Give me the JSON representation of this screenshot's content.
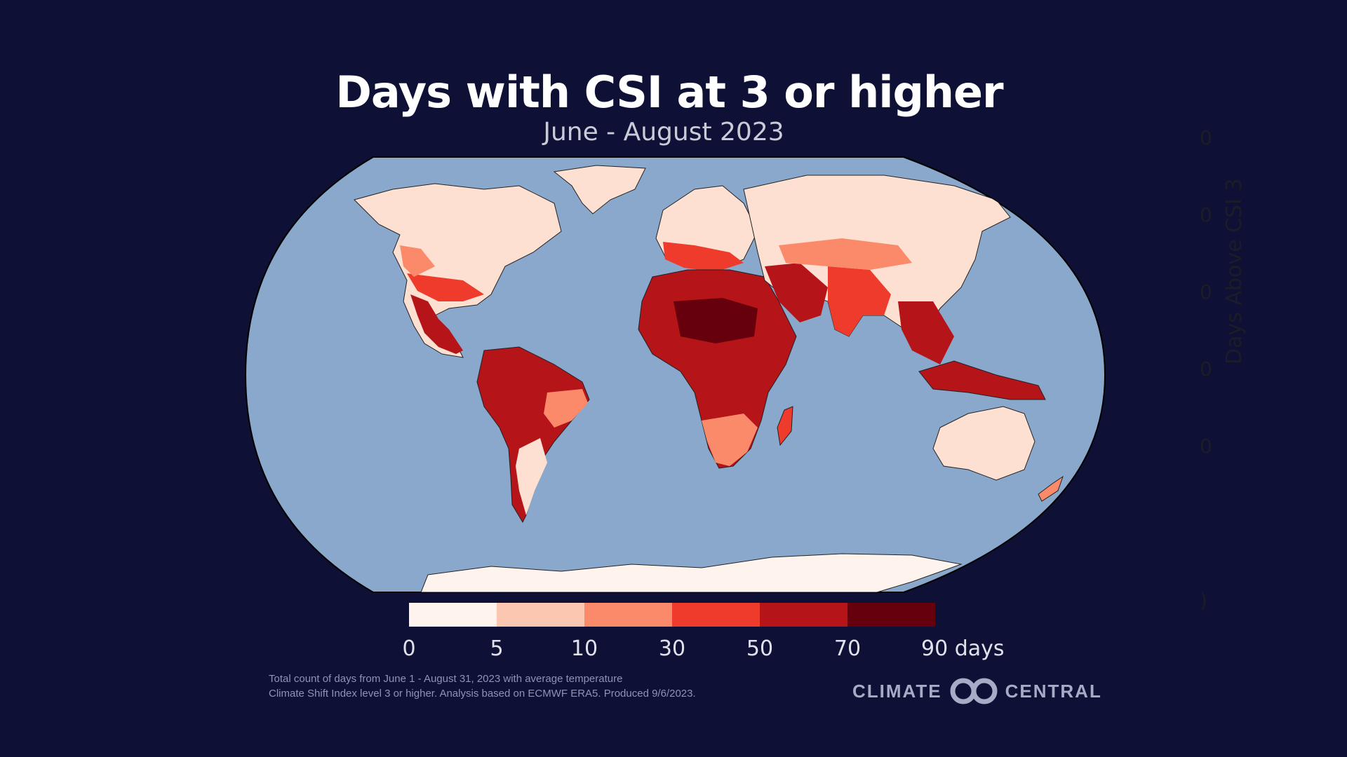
{
  "title": "Days with CSI at 3 or higher",
  "subtitle": "June - August 2023",
  "legend": {
    "colors": [
      "#fff3ee",
      "#fcc7b1",
      "#fb8a6a",
      "#ef3b2c",
      "#b51419",
      "#67000d"
    ],
    "ticks": [
      "0",
      "5",
      "10",
      "30",
      "50",
      "70",
      "90 days"
    ]
  },
  "map": {
    "ocean_color": "#8aa8cb",
    "land_base_color": "#fff3ee"
  },
  "footnote": {
    "line1": "Total count of days from June 1 - August 31, 2023 with average temperature",
    "line2": "Climate Shift Index level 3 or higher. Analysis based on ECMWF ERA5. Produced 9/6/2023."
  },
  "brand": {
    "left": "CLIMATE",
    "right": "CENTRAL"
  },
  "ghost_axis": {
    "label": "Days Above CSI 3",
    "ticks": [
      "0",
      "0",
      "0",
      "0",
      "0",
      "",
      ")"
    ]
  }
}
